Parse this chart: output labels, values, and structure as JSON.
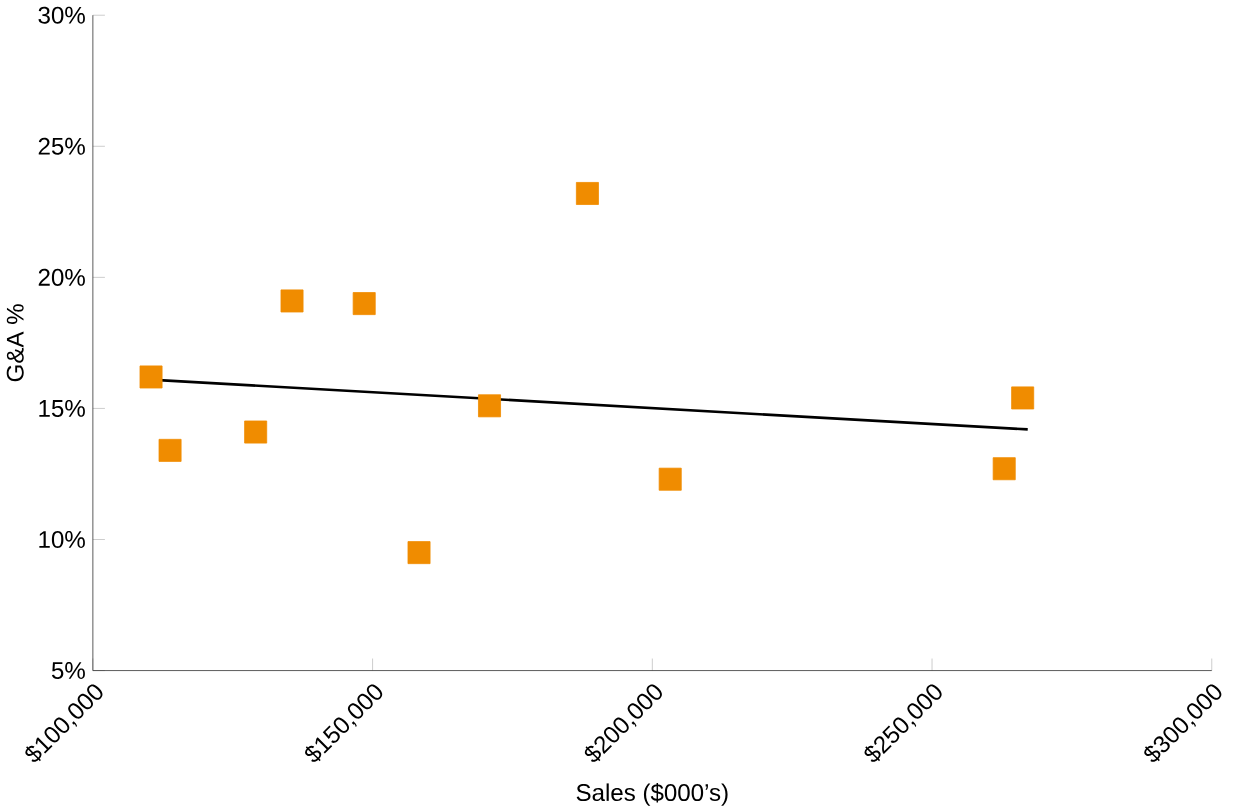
{
  "chart_data": {
    "type": "scatter",
    "xlabel": "Sales ($000’s)",
    "ylabel": "G&A %",
    "xlim": [
      100000,
      300000
    ],
    "ylim": [
      5,
      30
    ],
    "xticks": [
      {
        "value": 100000,
        "label": "$100,000"
      },
      {
        "value": 150000,
        "label": "$150,000"
      },
      {
        "value": 200000,
        "label": "$200,000"
      },
      {
        "value": 250000,
        "label": "$250,000"
      },
      {
        "value": 300000,
        "label": "$300,000"
      }
    ],
    "yticks": [
      {
        "value": 5,
        "label": "5%"
      },
      {
        "value": 10,
        "label": "10%"
      },
      {
        "value": 15,
        "label": "15%"
      },
      {
        "value": 20,
        "label": "20%"
      },
      {
        "value": 25,
        "label": "25%"
      },
      {
        "value": 30,
        "label": "30%"
      }
    ],
    "grid": false,
    "marker": "square",
    "series": [
      {
        "color": "#f08c00",
        "x": [
          110400,
          113800,
          129100,
          135600,
          148500,
          158300,
          170900,
          188400,
          203200,
          262900,
          266200
        ],
        "values": [
          16.2,
          13.4,
          14.1,
          19.1,
          19.0,
          9.5,
          15.1,
          23.2,
          12.3,
          12.7,
          15.4
        ]
      },
      {
        "type": "line",
        "color": "#000000",
        "marker": "none",
        "x": [
          110200,
          267100
        ],
        "values": [
          16.1,
          14.2
        ]
      }
    ]
  }
}
